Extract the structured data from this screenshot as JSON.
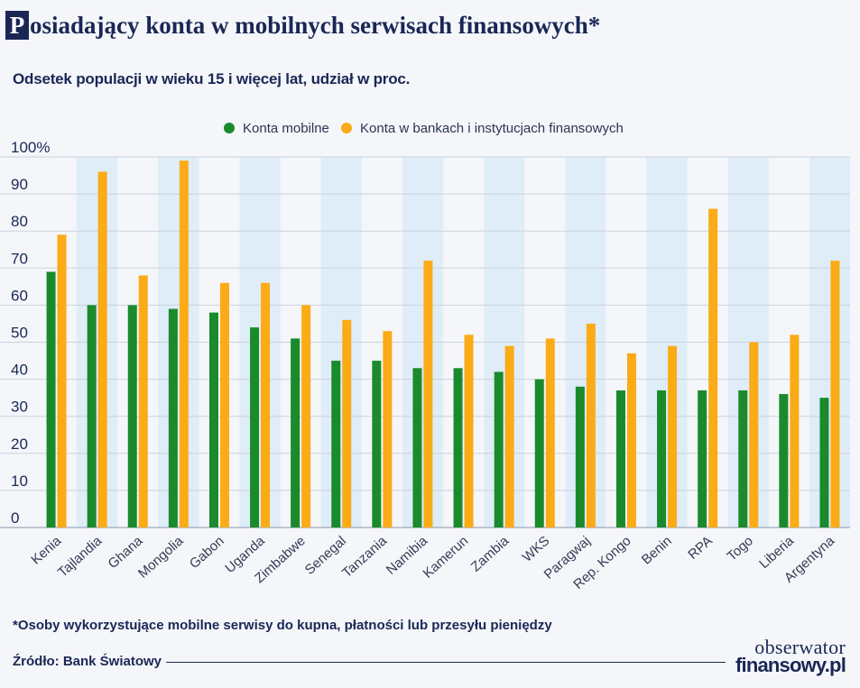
{
  "header": {
    "title_initial": "P",
    "title_rest": "osiadający konta w mobilnych serwisach finansowych*",
    "subtitle": "Odsetek populacji w wieku 15 i więcej lat, udział w proc."
  },
  "footer": {
    "footnote": "*Osoby wykorzystujące mobilne serwisy do kupna, płatności lub przesyłu pieniędzy",
    "source": "Źródło: Bank Światowy",
    "brand_line1": "obserwator",
    "brand_line2": "finansowy.pl"
  },
  "colors": {
    "mobile": "#1a8a2c",
    "bank": "#fbab16",
    "band": "#dfedf8",
    "grid": "#c9d3de",
    "text": "#1a2755"
  },
  "chart_data": {
    "type": "bar",
    "categories": [
      "Kenia",
      "Tajlandia",
      "Ghana",
      "Mongolia",
      "Gabon",
      "Uganda",
      "Zimbabwe",
      "Senegal",
      "Tanzania",
      "Namibia",
      "Kamerun",
      "Zambia",
      "WKS",
      "Paragwaj",
      "Rep. Kongo",
      "Benin",
      "RPA",
      "Togo",
      "Liberia",
      "Argentyna"
    ],
    "series": [
      {
        "name": "Konta mobilne",
        "values": [
          69,
          60,
          60,
          59,
          58,
          54,
          51,
          45,
          45,
          43,
          43,
          42,
          40,
          38,
          37,
          37,
          37,
          37,
          36,
          35
        ]
      },
      {
        "name": "Konta w bankach i instytucjach finansowych",
        "values": [
          79,
          96,
          68,
          99,
          66,
          66,
          60,
          56,
          53,
          72,
          52,
          49,
          51,
          55,
          47,
          49,
          86,
          50,
          52,
          72
        ]
      }
    ],
    "yticks": [
      "100%",
      "90",
      "80",
      "70",
      "60",
      "50",
      "40",
      "30",
      "20",
      "10",
      "0"
    ],
    "ylim": [
      0,
      100
    ],
    "title": "Posiadający konta w mobilnych serwisach finansowych*",
    "xlabel": "",
    "ylabel": "",
    "legend_position": "top-center"
  }
}
